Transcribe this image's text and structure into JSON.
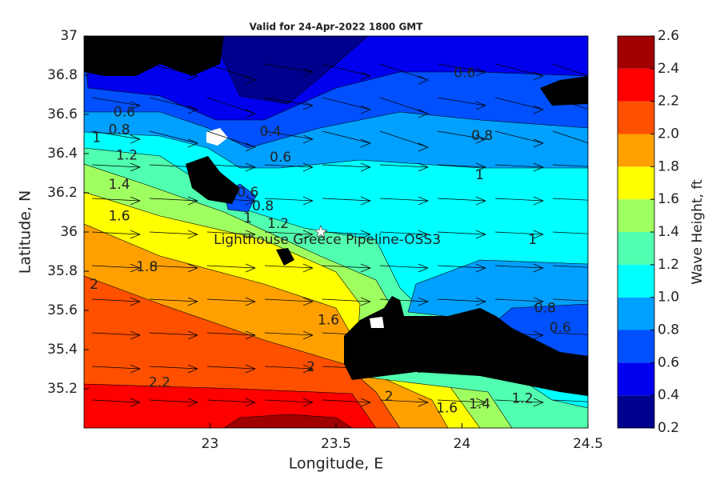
{
  "chart_data": {
    "type": "contour",
    "title": "Valid for 24-Apr-2022 1800 GMT",
    "x_label": "Longitude, E",
    "y_label": "Latitude, N",
    "xlim": [
      22.5,
      24.5
    ],
    "ylim": [
      35,
      37
    ],
    "xticks": [
      23,
      23.5,
      24,
      24.5
    ],
    "yticks": [
      35.2,
      35.4,
      35.6,
      35.8,
      36,
      36.2,
      36.4,
      36.6,
      36.8,
      37
    ],
    "colorbar": {
      "label": "Wave Height, ft",
      "lim": [
        0.2,
        2.6
      ],
      "ticks": [
        0.2,
        0.4,
        0.6,
        0.8,
        {
          "value": 1.0,
          "label": "1.0"
        },
        1.2,
        1.4,
        1.6,
        1.8,
        {
          "value": 2.0,
          "label": "2.0"
        },
        2.2,
        2.4,
        2.6
      ],
      "colors": [
        "#00008f",
        "#0000ef",
        "#0050ff",
        "#00a0ff",
        "#00ffff",
        "#50ffaf",
        "#a0ff60",
        "#ffff00",
        "#ffa000",
        "#ff5000",
        "#ff0000",
        "#a00000"
      ]
    },
    "contour_labels": [
      {
        "value": 0.6,
        "x": 22.66,
        "y": 36.61
      },
      {
        "value": 0.8,
        "x": 22.64,
        "y": 36.52
      },
      {
        "value": 1,
        "x": 22.55,
        "y": 36.48
      },
      {
        "value": 1.2,
        "x": 22.67,
        "y": 36.39
      },
      {
        "value": 1.4,
        "x": 22.64,
        "y": 36.24
      },
      {
        "value": 1.6,
        "x": 22.64,
        "y": 36.08
      },
      {
        "value": 1.8,
        "x": 22.75,
        "y": 35.82
      },
      {
        "value": 2,
        "x": 22.54,
        "y": 35.73
      },
      {
        "value": 2.2,
        "x": 22.8,
        "y": 35.23
      },
      {
        "value": 0.4,
        "x": 23.24,
        "y": 36.51
      },
      {
        "value": 0.6,
        "x": 23.28,
        "y": 36.38
      },
      {
        "value": 0.6,
        "x": 23.15,
        "y": 36.2
      },
      {
        "value": 0.8,
        "x": 23.21,
        "y": 36.13
      },
      {
        "value": 1,
        "x": 23.15,
        "y": 36.07
      },
      {
        "value": 1.2,
        "x": 23.27,
        "y": 36.04
      },
      {
        "value": 1.6,
        "x": 23.47,
        "y": 35.55
      },
      {
        "value": 2,
        "x": 23.4,
        "y": 35.31
      },
      {
        "value": 2,
        "x": 23.71,
        "y": 35.16
      },
      {
        "value": 1.6,
        "x": 23.94,
        "y": 35.1
      },
      {
        "value": 1.4,
        "x": 24.07,
        "y": 35.12
      },
      {
        "value": 1.2,
        "x": 24.24,
        "y": 35.15
      },
      {
        "value": 0.6,
        "x": 24.01,
        "y": 36.81
      },
      {
        "value": 0.8,
        "x": 24.08,
        "y": 36.49
      },
      {
        "value": 1,
        "x": 24.07,
        "y": 36.29
      },
      {
        "value": 1,
        "x": 24.28,
        "y": 35.96
      },
      {
        "value": 0.8,
        "x": 24.33,
        "y": 35.61
      },
      {
        "value": 0.6,
        "x": 24.39,
        "y": 35.51
      }
    ],
    "station": {
      "name": "Lighthouse Greece Pipeline-OSS3",
      "x": 23.44,
      "y": 36.0
    }
  }
}
